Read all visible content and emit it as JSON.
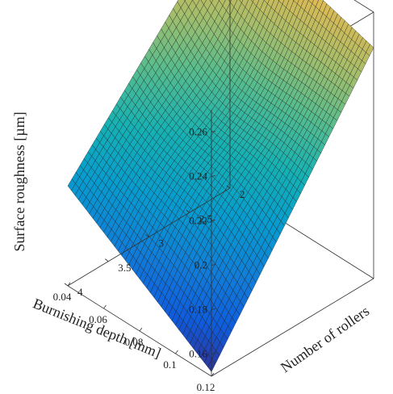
{
  "chart_data": {
    "type": "surface",
    "title": "",
    "xlabel": "Burnishing depth [mm]",
    "ylabel": "Number of rollers",
    "zlabel": "Surface roughness [µm]",
    "x_ticks": [
      "0.04",
      "0.06",
      "0.08",
      "0.1",
      "0.12"
    ],
    "y_ticks": [
      "2",
      "2.5",
      "3",
      "3.5",
      "4"
    ],
    "z_ticks": [
      "0.16",
      "0.18",
      "0.2",
      "0.22",
      "0.24",
      "0.26"
    ],
    "xlim": [
      0.04,
      0.12
    ],
    "ylim": [
      2,
      4
    ],
    "zlim": [
      0.15,
      0.27
    ],
    "colormap": "parula",
    "corner_values": [
      {
        "burnishing_depth": 0.04,
        "number_of_rollers": 4,
        "surface_roughness": 0.152
      },
      {
        "burnishing_depth": 0.12,
        "number_of_rollers": 4,
        "surface_roughness": 0.195
      },
      {
        "burnishing_depth": 0.12,
        "number_of_rollers": 2,
        "surface_roughness": 0.274
      },
      {
        "burnishing_depth": 0.04,
        "number_of_rollers": 2,
        "surface_roughness": 0.254
      }
    ],
    "grid": false
  }
}
